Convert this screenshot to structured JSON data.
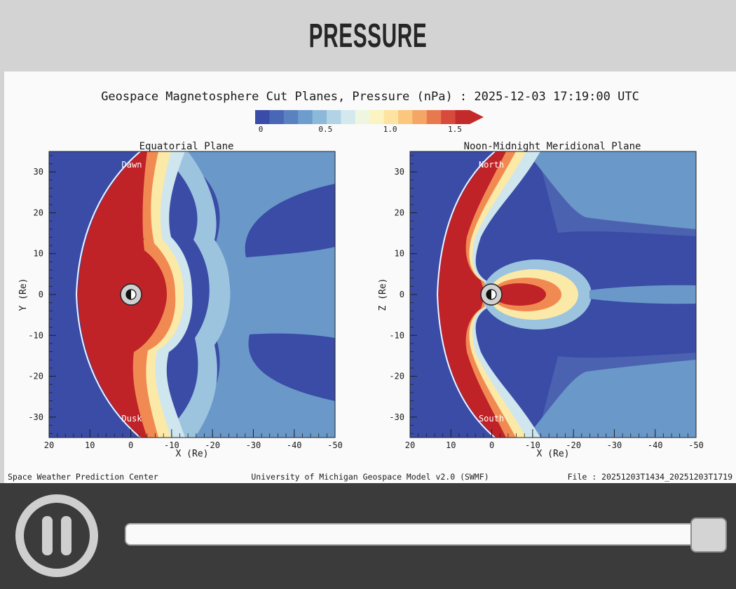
{
  "header": {
    "title": "PRESSURE"
  },
  "figure": {
    "title": "Geospace Magnetosphere Cut Planes, Pressure (nPa) : 2025-12-03 17:19:00 UTC",
    "colorbar": {
      "ticks": [
        "0",
        "0.5",
        "1.0",
        "1.5"
      ],
      "colors": [
        "#3b4ba8",
        "#4a67b5",
        "#5a82c1",
        "#6c9dcd",
        "#8cb8d9",
        "#b1d3e5",
        "#d4e9ee",
        "#eef6e1",
        "#fbf3c0",
        "#fde3a0",
        "#fbc77f",
        "#f5a565",
        "#e8794f",
        "#d84a3c",
        "#c32a2c"
      ]
    },
    "panels": [
      {
        "title": "Equatorial Plane",
        "ylabel": "Y (Re)",
        "xlabel": "X (Re)",
        "top_label": "Dawn",
        "bottom_label": "Dusk",
        "xticks": [
          "20",
          "10",
          "0",
          "-10",
          "-20",
          "-30",
          "-40",
          "-50"
        ],
        "yticks": [
          "30",
          "20",
          "10",
          "0",
          "-10",
          "-20",
          "-30"
        ]
      },
      {
        "title": "Noon-Midnight Meridional Plane",
        "ylabel": "Z (Re)",
        "xlabel": "X (Re)",
        "top_label": "North",
        "bottom_label": "South",
        "xticks": [
          "20",
          "10",
          "0",
          "-10",
          "-20",
          "-30",
          "-40",
          "-50"
        ],
        "yticks": [
          "30",
          "20",
          "10",
          "0",
          "-10",
          "-20",
          "-30"
        ]
      }
    ],
    "footer": {
      "left": "Space Weather Prediction Center",
      "center": "University of Michigan Geospace Model v2.0 (SWMF)",
      "right": "File : 20251203T1434_20251203T1719"
    }
  },
  "controls": {
    "pause_icon": "pause-icon",
    "slider_progress": 1.0
  }
}
